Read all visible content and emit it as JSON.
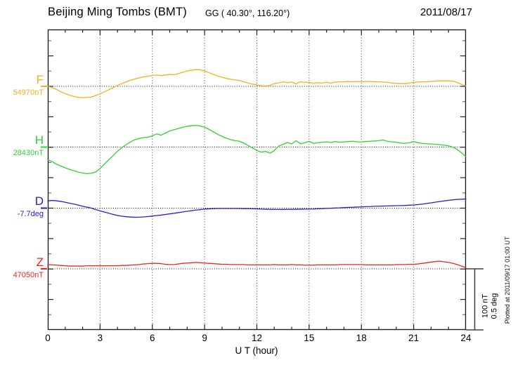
{
  "header": {
    "station_title": "Beijing Ming Tombs (BMT)",
    "coordinates": "GG ( 40.30°, 116.20°)",
    "date": "2011/08/17"
  },
  "axes": {
    "x_label": "U T (hour)",
    "x_ticks": [
      "0",
      "3",
      "6",
      "9",
      "12",
      "15",
      "18",
      "21",
      "24"
    ],
    "x_range_hours": [
      0,
      24
    ],
    "x_major_step_hours": 3,
    "x_minor_step_hours": 1,
    "grid": "dotted vertical lines every 3 hours, dotted horizontal baseline per trace"
  },
  "scale_bar": {
    "label_line1": "100 nT",
    "label_line2": "0.5 deg"
  },
  "footer_note": "Plotted at 2011/09/17 01:00 UT",
  "chart_data": {
    "type": "line",
    "title": "Beijing Ming Tombs (BMT) magnetogram 2011/08/17",
    "xlabel": "U T (hour)",
    "x_range": [
      0,
      24
    ],
    "x_step_hours": 0.25,
    "scale": {
      "nT_per_division": 100,
      "deg_per_division": 0.5
    },
    "legend_position": "left",
    "series": [
      {
        "name": "F",
        "baseline_label": "54970nT",
        "baseline_value": 54970,
        "units": "nT",
        "color": "#F5AE1E",
        "offsets": [
          0,
          -2,
          -5,
          -9,
          -12,
          -14.5,
          -16.5,
          -18,
          -18.5,
          -18,
          -17.5,
          -15,
          -12.5,
          -9,
          -5.5,
          -2,
          1.5,
          4.5,
          7.5,
          10,
          12,
          14,
          15.5,
          16.5,
          18,
          18.5,
          17.5,
          18.5,
          19.5,
          19,
          21,
          23,
          25,
          26.5,
          27.5,
          27,
          25,
          22.5,
          19.5,
          17,
          15,
          13,
          11.5,
          10.5,
          9.5,
          7.5,
          5.5,
          3.5,
          2.5,
          1,
          0.5,
          1.5,
          4.5,
          5.5,
          7.5,
          6,
          7,
          4,
          7.5,
          6.5,
          6.5,
          5,
          6,
          5.5,
          6.5,
          5.5,
          7,
          7.5,
          7.5,
          8,
          7.5,
          8,
          7.5,
          8,
          8,
          7.5,
          7.5,
          7,
          6.5,
          5.5,
          5,
          4.5,
          4.5,
          5.5,
          6.5,
          7,
          7.5,
          7.5,
          8,
          8.5,
          9,
          9,
          9,
          8.5,
          6.5,
          3,
          0.5
        ]
      },
      {
        "name": "H",
        "baseline_label": "28430nT",
        "baseline_value": 28430,
        "units": "nT",
        "color": "#2FD32F",
        "offsets": [
          -21,
          -24,
          -28,
          -31,
          -34,
          -36.5,
          -39,
          -41,
          -42.5,
          -43.5,
          -43,
          -41,
          -35,
          -28,
          -21,
          -14,
          -7,
          -1,
          4,
          8.5,
          12,
          14,
          15.5,
          16,
          18.5,
          21.5,
          19.5,
          23,
          26.5,
          28.5,
          30.5,
          32.5,
          34,
          35,
          35.5,
          34.5,
          32.5,
          29,
          25,
          21,
          17.5,
          14.5,
          12,
          10.5,
          9.5,
          6.5,
          2.5,
          -1.5,
          -5.5,
          -8.5,
          -7,
          -10,
          -6,
          1.5,
          4.5,
          7.5,
          5,
          10.5,
          5.5,
          7,
          9.5,
          6,
          7,
          8,
          8.5,
          7.5,
          9,
          8,
          8.5,
          9,
          9.5,
          8.5,
          8.5,
          9,
          9.5,
          10,
          10.5,
          11.5,
          9.5,
          8.5,
          8,
          6.5,
          6,
          7,
          9,
          7,
          6,
          5.5,
          5,
          4.5,
          4,
          3,
          2,
          0,
          -4,
          -9.5,
          -16
        ]
      },
      {
        "name": "D",
        "baseline_label": "-7.7deg",
        "baseline_value": -7.7,
        "units": "deg",
        "color": "#2222CC",
        "offsets": [
          0.06,
          0.063,
          0.06,
          0.055,
          0.048,
          0.04,
          0.033,
          0.025,
          0.015,
          0.008,
          0.0,
          -0.012,
          -0.022,
          -0.032,
          -0.042,
          -0.052,
          -0.06,
          -0.066,
          -0.07,
          -0.073,
          -0.075,
          -0.074,
          -0.072,
          -0.069,
          -0.065,
          -0.061,
          -0.057,
          -0.052,
          -0.047,
          -0.042,
          -0.037,
          -0.031,
          -0.026,
          -0.021,
          -0.016,
          -0.012,
          -0.008,
          -0.006,
          -0.004,
          -0.003,
          -0.003,
          -0.003,
          -0.003,
          -0.003,
          -0.003,
          -0.004,
          -0.004,
          -0.005,
          -0.006,
          -0.008,
          -0.009,
          -0.01,
          -0.011,
          -0.011,
          -0.011,
          -0.01,
          -0.01,
          -0.009,
          -0.009,
          -0.008,
          -0.008,
          -0.007,
          -0.005,
          -0.004,
          -0.002,
          -0.001,
          0.001,
          0.002,
          0.004,
          0.006,
          0.007,
          0.009,
          0.01,
          0.012,
          0.013,
          0.015,
          0.016,
          0.017,
          0.018,
          0.019,
          0.02,
          0.021,
          0.022,
          0.024,
          0.026,
          0.029,
          0.033,
          0.038,
          0.043,
          0.049,
          0.054,
          0.059,
          0.064,
          0.068,
          0.071,
          0.073,
          0.075
        ]
      },
      {
        "name": "Z",
        "baseline_label": "47050nT",
        "baseline_value": 47050,
        "units": "nT",
        "color": "#EE2222",
        "offsets": [
          7,
          6.5,
          6,
          5.5,
          5,
          4.5,
          4.5,
          4.5,
          4.5,
          5,
          5,
          5,
          5,
          5,
          5,
          5,
          5,
          5.5,
          5.5,
          6,
          6.5,
          7,
          8,
          8.5,
          9,
          9,
          8.5,
          7.5,
          7,
          7,
          8,
          9,
          9.5,
          10,
          10.5,
          10,
          9.5,
          9,
          8.5,
          8,
          7.5,
          7.5,
          7,
          7,
          7,
          7,
          6.5,
          6.5,
          6.5,
          6.5,
          6.5,
          6.5,
          7,
          6.5,
          6.5,
          6.5,
          7,
          6.5,
          6.5,
          6,
          6,
          6,
          6.5,
          6.5,
          6.5,
          6.5,
          6.5,
          7,
          7,
          7,
          7,
          7,
          7,
          6.5,
          6.5,
          6.5,
          6.5,
          6.5,
          6.5,
          6.5,
          7,
          7,
          7,
          7.5,
          7.5,
          8,
          9,
          10,
          11,
          12,
          12.5,
          11.5,
          10.5,
          9,
          7,
          4.5,
          2
        ]
      }
    ]
  }
}
